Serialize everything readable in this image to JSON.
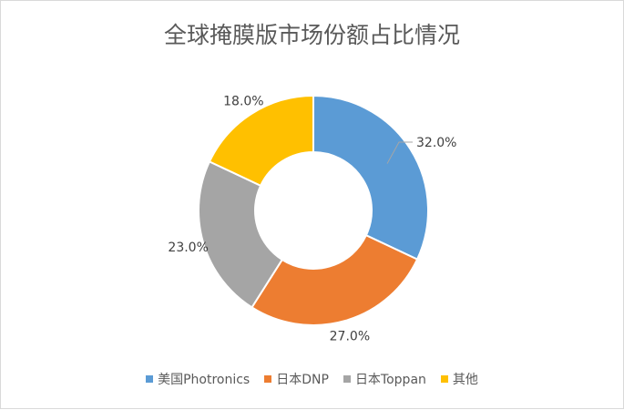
{
  "chart_data": {
    "type": "pie",
    "variant": "donut",
    "title": "全球掩膜版市场份额占比情况",
    "categories": [
      "美国Photronics",
      "日本DNP",
      "日本Toppan",
      "其他"
    ],
    "values": [
      32.0,
      27.0,
      23.0,
      18.0
    ],
    "data_labels": [
      "32.0%",
      "27.0%",
      "23.0%",
      "18.0%"
    ],
    "colors": [
      "#5B9BD5",
      "#ED7D31",
      "#A5A5A5",
      "#FFC000"
    ],
    "legend_position": "bottom"
  }
}
